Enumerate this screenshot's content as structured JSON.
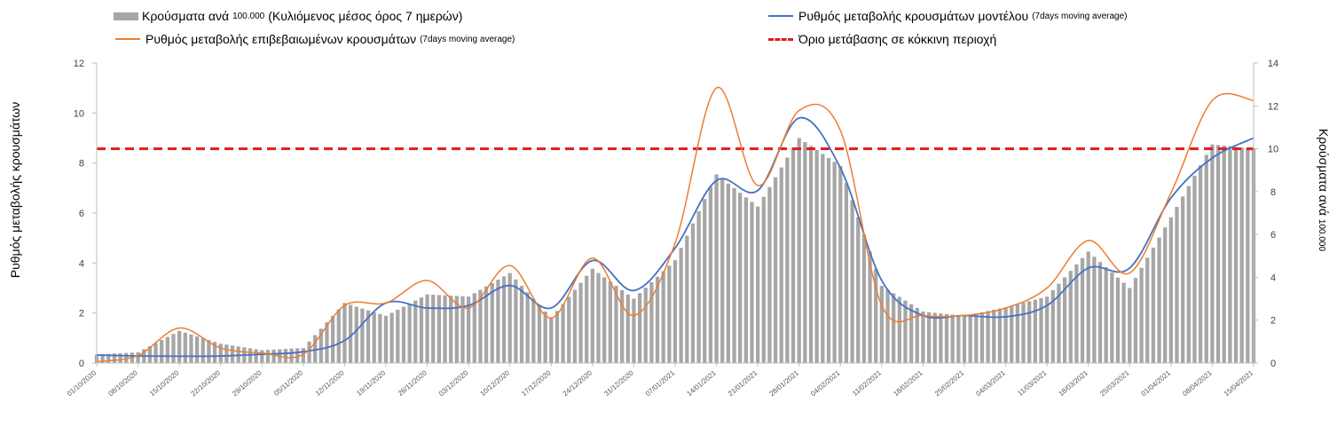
{
  "legend": {
    "bars_main": "Κρούσματα ανά",
    "bars_small": "100.000",
    "bars_rest": "(Κυλιόμενος μέσος όρος 7 ημερών)",
    "blue_main": "Ρυθμός μεταβολής κρουσμάτων μοντέλου",
    "blue_small": "(7days moving average)",
    "orange_main": "Ρυθμός μεταβολής επιβεβαιωμένων κρουσμάτων",
    "orange_small": "(7days moving average)",
    "red_main": "Όριο μετάβασης σε κόκκινη περιοχή"
  },
  "axes": {
    "left_label": "Ρυθμός μεταβολής κρουσμάτων",
    "right_label_main": "Κρούσματα ανά",
    "right_label_small": "100.000"
  },
  "colors": {
    "bars": "#a6a6a6",
    "model_line": "#4472c4",
    "confirmed_line": "#ed7d31",
    "threshold": "#e01b1b"
  },
  "chart_data": {
    "type": "bar+line",
    "x_dates": [
      "01/10/2020",
      "08/10/2020",
      "15/10/2020",
      "22/10/2020",
      "29/10/2020",
      "05/11/2020",
      "12/11/2020",
      "19/11/2020",
      "26/11/2020",
      "03/12/2020",
      "10/12/2020",
      "17/12/2020",
      "24/12/2020",
      "31/12/2020",
      "07/01/2021",
      "14/01/2021",
      "21/01/2021",
      "28/01/2021",
      "04/02/2021",
      "11/02/2021",
      "18/02/2021",
      "25/02/2021",
      "04/03/2021",
      "11/03/2021",
      "18/03/2021",
      "25/03/2021",
      "01/04/2021",
      "08/04/2021",
      "15/04/2021"
    ],
    "x_tick_labels": [
      "01/10/2020",
      "08/10/2020",
      "15/10/2020",
      "22/10/2020",
      "29/10/2020",
      "05/11/2020",
      "12/11/2020",
      "19/11/2020",
      "26/11/2020",
      "03/12/2020",
      "10/12/2020",
      "17/12/2020",
      "24/12/2020",
      "31/12/2020",
      "07/01/2021",
      "14/01/2021",
      "21/01/2021",
      "28/01/2021",
      "04/02/2021",
      "11/02/2021",
      "18/02/2021",
      "25/02/2021",
      "04/03/2021",
      "11/03/2021",
      "18/03/2021",
      "25/03/2021",
      "01/04/2021",
      "08/04/2021",
      "15/04/2021"
    ],
    "y_left_range": [
      0,
      12
    ],
    "y_left_ticks": [
      0,
      2,
      4,
      6,
      8,
      10,
      12
    ],
    "y_right_range": [
      0,
      14
    ],
    "y_right_ticks": [
      0,
      2,
      4,
      6,
      8,
      10,
      12,
      14
    ],
    "threshold_right": 10,
    "bars_weekly_right": [
      0.4,
      0.5,
      1.5,
      0.9,
      0.6,
      0.7,
      2.8,
      2.2,
      3.2,
      3.1,
      4.2,
      2.1,
      4.4,
      3.0,
      4.8,
      8.8,
      7.3,
      10.5,
      9.2,
      3.6,
      2.4,
      2.2,
      2.6,
      3.1,
      5.2,
      3.5,
      6.8,
      10.2,
      10.0
    ],
    "model_rate_weekly_left": [
      0.32,
      0.28,
      0.27,
      0.28,
      0.35,
      0.45,
      0.9,
      2.4,
      2.2,
      2.3,
      3.1,
      2.2,
      4.1,
      2.9,
      4.6,
      7.3,
      6.9,
      9.8,
      7.8,
      3.3,
      1.9,
      1.9,
      1.85,
      2.3,
      3.8,
      3.8,
      6.6,
      8.2,
      9.0
    ],
    "confirmed_rate_weekly_left": [
      0.05,
      0.3,
      1.4,
      0.6,
      0.4,
      0.35,
      2.3,
      2.4,
      3.3,
      2.2,
      3.9,
      1.8,
      4.2,
      1.9,
      4.8,
      11.0,
      7.1,
      10.1,
      9.3,
      2.3,
      1.9,
      1.9,
      2.2,
      3.0,
      4.9,
      3.6,
      6.8,
      10.5,
      10.5
    ]
  }
}
